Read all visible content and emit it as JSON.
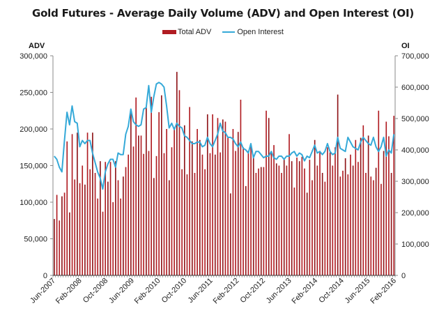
{
  "chart_data": {
    "type": "bar",
    "title": "Gold Futures - Average Daily Volume (ADV) and Open Interest (OI)",
    "legend": {
      "position": "top-center",
      "entries": [
        {
          "name": "Total ADV",
          "color": "#b01c22",
          "kind": "bar"
        },
        {
          "name": "Open Interest",
          "color": "#35a9d8",
          "kind": "line"
        }
      ]
    },
    "ylabel_left": "ADV",
    "ylabel_right": "OI",
    "ylim_left": [
      0,
      300000
    ],
    "ylim_right": [
      0,
      700000
    ],
    "yticks_left": [
      "0",
      "50,000",
      "100,000",
      "150,000",
      "200,000",
      "250,000",
      "300,000"
    ],
    "yticks_left_values": [
      0,
      50000,
      100000,
      150000,
      200000,
      250000,
      300000
    ],
    "yticks_right": [
      "0",
      "100,000",
      "200,000",
      "300,000",
      "400,000",
      "500,000",
      "600,000",
      "700,000"
    ],
    "yticks_right_values": [
      0,
      100000,
      200000,
      300000,
      400000,
      500000,
      600000,
      700000
    ],
    "x_start": "Jun-2007",
    "x_end": "Feb-2016",
    "x_tick_labels": [
      "Jun-2007",
      "Feb-2008",
      "Oct-2008",
      "Jun-2009",
      "Feb-2010",
      "Oct-2010",
      "Jun-2011",
      "Feb-2012",
      "Oct-2012",
      "Jun-2013",
      "Feb-2014",
      "Oct-2014",
      "Jun-2015",
      "Feb-2016"
    ],
    "x_tick_every": 8,
    "grid": false,
    "series": [
      {
        "name": "Total ADV",
        "axis": "left",
        "type": "bar",
        "values": [
          77000,
          110000,
          75000,
          108000,
          113000,
          183000,
          86000,
          193000,
          131000,
          195000,
          126000,
          150000,
          124000,
          195000,
          145000,
          195000,
          140000,
          105000,
          156000,
          87000,
          155000,
          128000,
          155000,
          100000,
          156000,
          130000,
          105000,
          135000,
          148000,
          165000,
          225000,
          176000,
          243000,
          191000,
          191000,
          166000,
          230000,
          170000,
          244000,
          133000,
          163000,
          223000,
          246000,
          167000,
          200000,
          130000,
          175000,
          200000,
          278000,
          253000,
          145000,
          205000,
          138000,
          230000,
          183000,
          140000,
          200000,
          185000,
          165000,
          145000,
          220000,
          167000,
          220000,
          165000,
          215000,
          168000,
          213000,
          210000,
          188000,
          112000,
          200000,
          170000,
          196000,
          240000,
          175000,
          122000,
          170000,
          178000,
          162000,
          140000,
          146000,
          148000,
          148000,
          225000,
          215000,
          170000,
          178000,
          153000,
          150000,
          140000,
          160000,
          150000,
          193000,
          156000,
          120000,
          161000,
          156000,
          162000,
          146000,
          113000,
          158000,
          130000,
          185000,
          150000,
          170000,
          140000,
          128000,
          175000,
          168000,
          150000,
          175000,
          247000,
          135000,
          143000,
          160000,
          138000,
          165000,
          150000,
          185000,
          155000,
          188000,
          205000,
          140000,
          191000,
          135000,
          130000,
          147000,
          225000,
          125000,
          170000,
          210000,
          190000,
          140000,
          218000
        ],
        "color": "#b01c22"
      },
      {
        "name": "Open Interest",
        "axis": "right",
        "type": "line",
        "values": [
          380000,
          370000,
          345000,
          330000,
          430000,
          520000,
          480000,
          540000,
          490000,
          485000,
          410000,
          430000,
          420000,
          430000,
          430000,
          390000,
          360000,
          330000,
          310000,
          275000,
          330000,
          355000,
          370000,
          370000,
          345000,
          390000,
          385000,
          385000,
          450000,
          475000,
          530000,
          490000,
          480000,
          475000,
          480000,
          530000,
          535000,
          605000,
          520000,
          570000,
          610000,
          615000,
          610000,
          600000,
          540000,
          470000,
          485000,
          465000,
          485000,
          475000,
          470000,
          445000,
          440000,
          430000,
          420000,
          420000,
          425000,
          425000,
          410000,
          415000,
          440000,
          420000,
          410000,
          430000,
          450000,
          485000,
          460000,
          455000,
          440000,
          440000,
          435000,
          420000,
          410000,
          425000,
          405000,
          400000,
          390000,
          420000,
          375000,
          395000,
          395000,
          385000,
          375000,
          380000,
          380000,
          395000,
          375000,
          370000,
          380000,
          380000,
          370000,
          380000,
          380000,
          390000,
          395000,
          380000,
          390000,
          385000,
          365000,
          380000,
          375000,
          395000,
          415000,
          390000,
          395000,
          385000,
          395000,
          420000,
          395000,
          385000,
          390000,
          440000,
          405000,
          400000,
          395000,
          440000,
          425000,
          410000,
          405000,
          400000,
          425000,
          440000,
          430000,
          420000,
          415000,
          440000,
          410000,
          395000,
          410000,
          440000,
          380000,
          400000,
          390000,
          450000
        ],
        "color": "#35a9d8"
      }
    ]
  }
}
